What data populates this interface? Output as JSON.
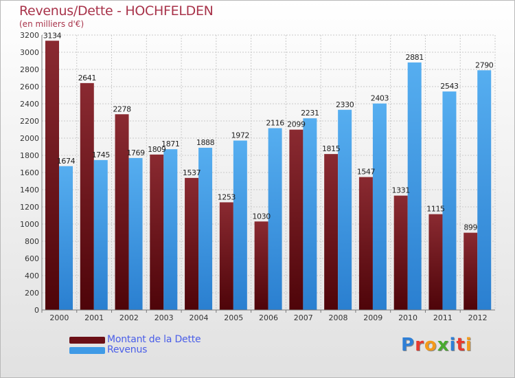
{
  "title": "Revenus/Dette - HOCHFELDEN",
  "subtitle": "(en milliers d'€)",
  "logo": {
    "letters": [
      {
        "char": "P",
        "color": "#2f7fd6"
      },
      {
        "char": "r",
        "color": "#e8392f"
      },
      {
        "char": "o",
        "color": "#f39a1a"
      },
      {
        "char": "x",
        "color": "#4aaa2f"
      },
      {
        "char": "i",
        "color": "#2f7fd6"
      },
      {
        "char": "t",
        "color": "#e8392f"
      },
      {
        "char": "i",
        "color": "#f39a1a"
      }
    ]
  },
  "legend": [
    {
      "label": "Montant de la Dette",
      "color": "#6b0f16"
    },
    {
      "label": "Revenus",
      "color": "#3f9ae6"
    }
  ],
  "chart_data": {
    "type": "bar",
    "categories": [
      "2000",
      "2001",
      "2002",
      "2003",
      "2004",
      "2005",
      "2006",
      "2007",
      "2008",
      "2009",
      "2010",
      "2011",
      "2012"
    ],
    "series": [
      {
        "name": "Montant de la Dette",
        "color": "#7a1f26",
        "values": [
          3134,
          2641,
          2278,
          1809,
          1537,
          1253,
          1030,
          2099,
          1815,
          1547,
          1331,
          1115,
          899
        ],
        "labels": [
          "3134",
          "2641",
          "2278",
          "1809",
          "1537",
          "1253",
          "1030",
          "2099",
          "1815",
          "1547",
          "1331",
          "1115",
          "899"
        ]
      },
      {
        "name": "Revenus",
        "color": "#3f9ae6",
        "values": [
          1674,
          1745,
          1769,
          1871,
          1888,
          1972,
          2116,
          2231,
          2330,
          2403,
          2881,
          2543,
          2790
        ],
        "labels": [
          "1674",
          "1745",
          "1769",
          "1871",
          "1888",
          "1972",
          "2116",
          "2231",
          "2330",
          "2403",
          "2881",
          "2543",
          "2790"
        ]
      }
    ],
    "ylim": [
      0,
      3200
    ],
    "yticks": [
      0,
      200,
      400,
      600,
      800,
      1000,
      1200,
      1400,
      1600,
      1800,
      2000,
      2200,
      2400,
      2600,
      2800,
      3000,
      3200
    ],
    "grid": true,
    "legend_position": "bottom-left"
  }
}
